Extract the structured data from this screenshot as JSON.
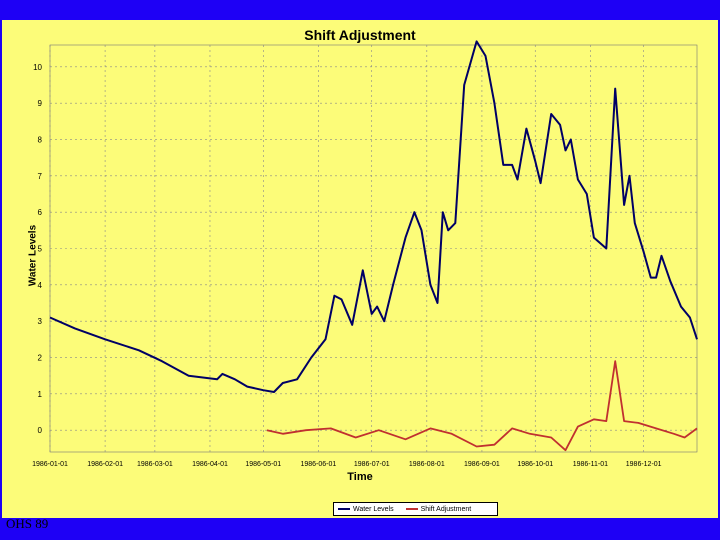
{
  "footer_text": "OHS 89",
  "colors": {
    "background": "#1e00f5",
    "panel": "#fcfc79",
    "water": "#000066",
    "shift": "#c03030"
  },
  "chart_data": {
    "type": "line",
    "title": "Shift Adjustment",
    "xlabel": "Time",
    "ylabel": "Water Levels",
    "ylim": [
      -0.6,
      10.6
    ],
    "yticks": [
      0,
      1,
      2,
      3,
      4,
      5,
      6,
      7,
      8,
      9,
      10
    ],
    "xlim": [
      "1986-01-01",
      "1986-12-31"
    ],
    "xtick_labels": [
      "1986-01-01",
      "1986-02-01",
      "1986-03-01",
      "1986-04-01",
      "1986-05-01",
      "1986-06-01",
      "1986-07-01",
      "1986-08-01",
      "1986-09-01",
      "1986-10-01",
      "1986-11-01",
      "1986-12-01"
    ],
    "grid": true,
    "legend": "bottom",
    "series": [
      {
        "name": "Water Levels",
        "color": "#000066",
        "points": [
          [
            "1986-01-01",
            3.1
          ],
          [
            "1986-01-15",
            2.8
          ],
          [
            "1986-02-01",
            2.5
          ],
          [
            "1986-02-20",
            2.2
          ],
          [
            "1986-03-05",
            1.9
          ],
          [
            "1986-03-20",
            1.5
          ],
          [
            "1986-04-05",
            1.4
          ],
          [
            "1986-04-08",
            1.55
          ],
          [
            "1986-04-15",
            1.4
          ],
          [
            "1986-04-22",
            1.2
          ],
          [
            "1986-05-01",
            1.1
          ],
          [
            "1986-05-07",
            1.05
          ],
          [
            "1986-05-12",
            1.3
          ],
          [
            "1986-05-20",
            1.4
          ],
          [
            "1986-05-28",
            2.0
          ],
          [
            "1986-06-05",
            2.5
          ],
          [
            "1986-06-10",
            3.7
          ],
          [
            "1986-06-14",
            3.6
          ],
          [
            "1986-06-20",
            2.9
          ],
          [
            "1986-06-26",
            4.4
          ],
          [
            "1986-07-01",
            3.2
          ],
          [
            "1986-07-04",
            3.4
          ],
          [
            "1986-07-08",
            3.0
          ],
          [
            "1986-07-13",
            4.0
          ],
          [
            "1986-07-20",
            5.3
          ],
          [
            "1986-07-25",
            6.0
          ],
          [
            "1986-07-29",
            5.5
          ],
          [
            "1986-08-03",
            4.0
          ],
          [
            "1986-08-07",
            3.5
          ],
          [
            "1986-08-10",
            6.0
          ],
          [
            "1986-08-13",
            5.5
          ],
          [
            "1986-08-17",
            5.7
          ],
          [
            "1986-08-22",
            9.5
          ],
          [
            "1986-08-29",
            10.7
          ],
          [
            "1986-09-03",
            10.3
          ],
          [
            "1986-09-08",
            9.0
          ],
          [
            "1986-09-13",
            7.3
          ],
          [
            "1986-09-18",
            7.3
          ],
          [
            "1986-09-21",
            6.9
          ],
          [
            "1986-09-26",
            8.3
          ],
          [
            "1986-10-01",
            7.4
          ],
          [
            "1986-10-04",
            6.8
          ],
          [
            "1986-10-10",
            8.7
          ],
          [
            "1986-10-15",
            8.4
          ],
          [
            "1986-10-18",
            7.7
          ],
          [
            "1986-10-21",
            8.0
          ],
          [
            "1986-10-25",
            6.9
          ],
          [
            "1986-10-30",
            6.5
          ],
          [
            "1986-11-03",
            5.3
          ],
          [
            "1986-11-10",
            5.0
          ],
          [
            "1986-11-15",
            9.4
          ],
          [
            "1986-11-20",
            6.2
          ],
          [
            "1986-11-23",
            7.0
          ],
          [
            "1986-11-26",
            5.7
          ],
          [
            "1986-12-01",
            4.9
          ],
          [
            "1986-12-05",
            4.2
          ],
          [
            "1986-12-08",
            4.2
          ],
          [
            "1986-12-11",
            4.8
          ],
          [
            "1986-12-16",
            4.1
          ],
          [
            "1986-12-22",
            3.4
          ],
          [
            "1986-12-27",
            3.1
          ],
          [
            "1986-12-31",
            2.5
          ]
        ]
      },
      {
        "name": "Shift Adjustment",
        "color": "#c03030",
        "points": [
          [
            "1986-05-03",
            0.0
          ],
          [
            "1986-05-12",
            -0.1
          ],
          [
            "1986-05-25",
            0.0
          ],
          [
            "1986-06-08",
            0.05
          ],
          [
            "1986-06-22",
            -0.2
          ],
          [
            "1986-07-05",
            0.0
          ],
          [
            "1986-07-20",
            -0.25
          ],
          [
            "1986-08-03",
            0.05
          ],
          [
            "1986-08-15",
            -0.1
          ],
          [
            "1986-08-29",
            -0.45
          ],
          [
            "1986-09-08",
            -0.4
          ],
          [
            "1986-09-18",
            0.05
          ],
          [
            "1986-09-28",
            -0.1
          ],
          [
            "1986-10-10",
            -0.2
          ],
          [
            "1986-10-18",
            -0.55
          ],
          [
            "1986-10-25",
            0.1
          ],
          [
            "1986-11-03",
            0.3
          ],
          [
            "1986-11-10",
            0.25
          ],
          [
            "1986-11-15",
            1.9
          ],
          [
            "1986-11-20",
            0.25
          ],
          [
            "1986-11-28",
            0.2
          ],
          [
            "1986-12-08",
            0.05
          ],
          [
            "1986-12-18",
            -0.1
          ],
          [
            "1986-12-24",
            -0.2
          ],
          [
            "1986-12-31",
            0.05
          ]
        ]
      }
    ]
  }
}
